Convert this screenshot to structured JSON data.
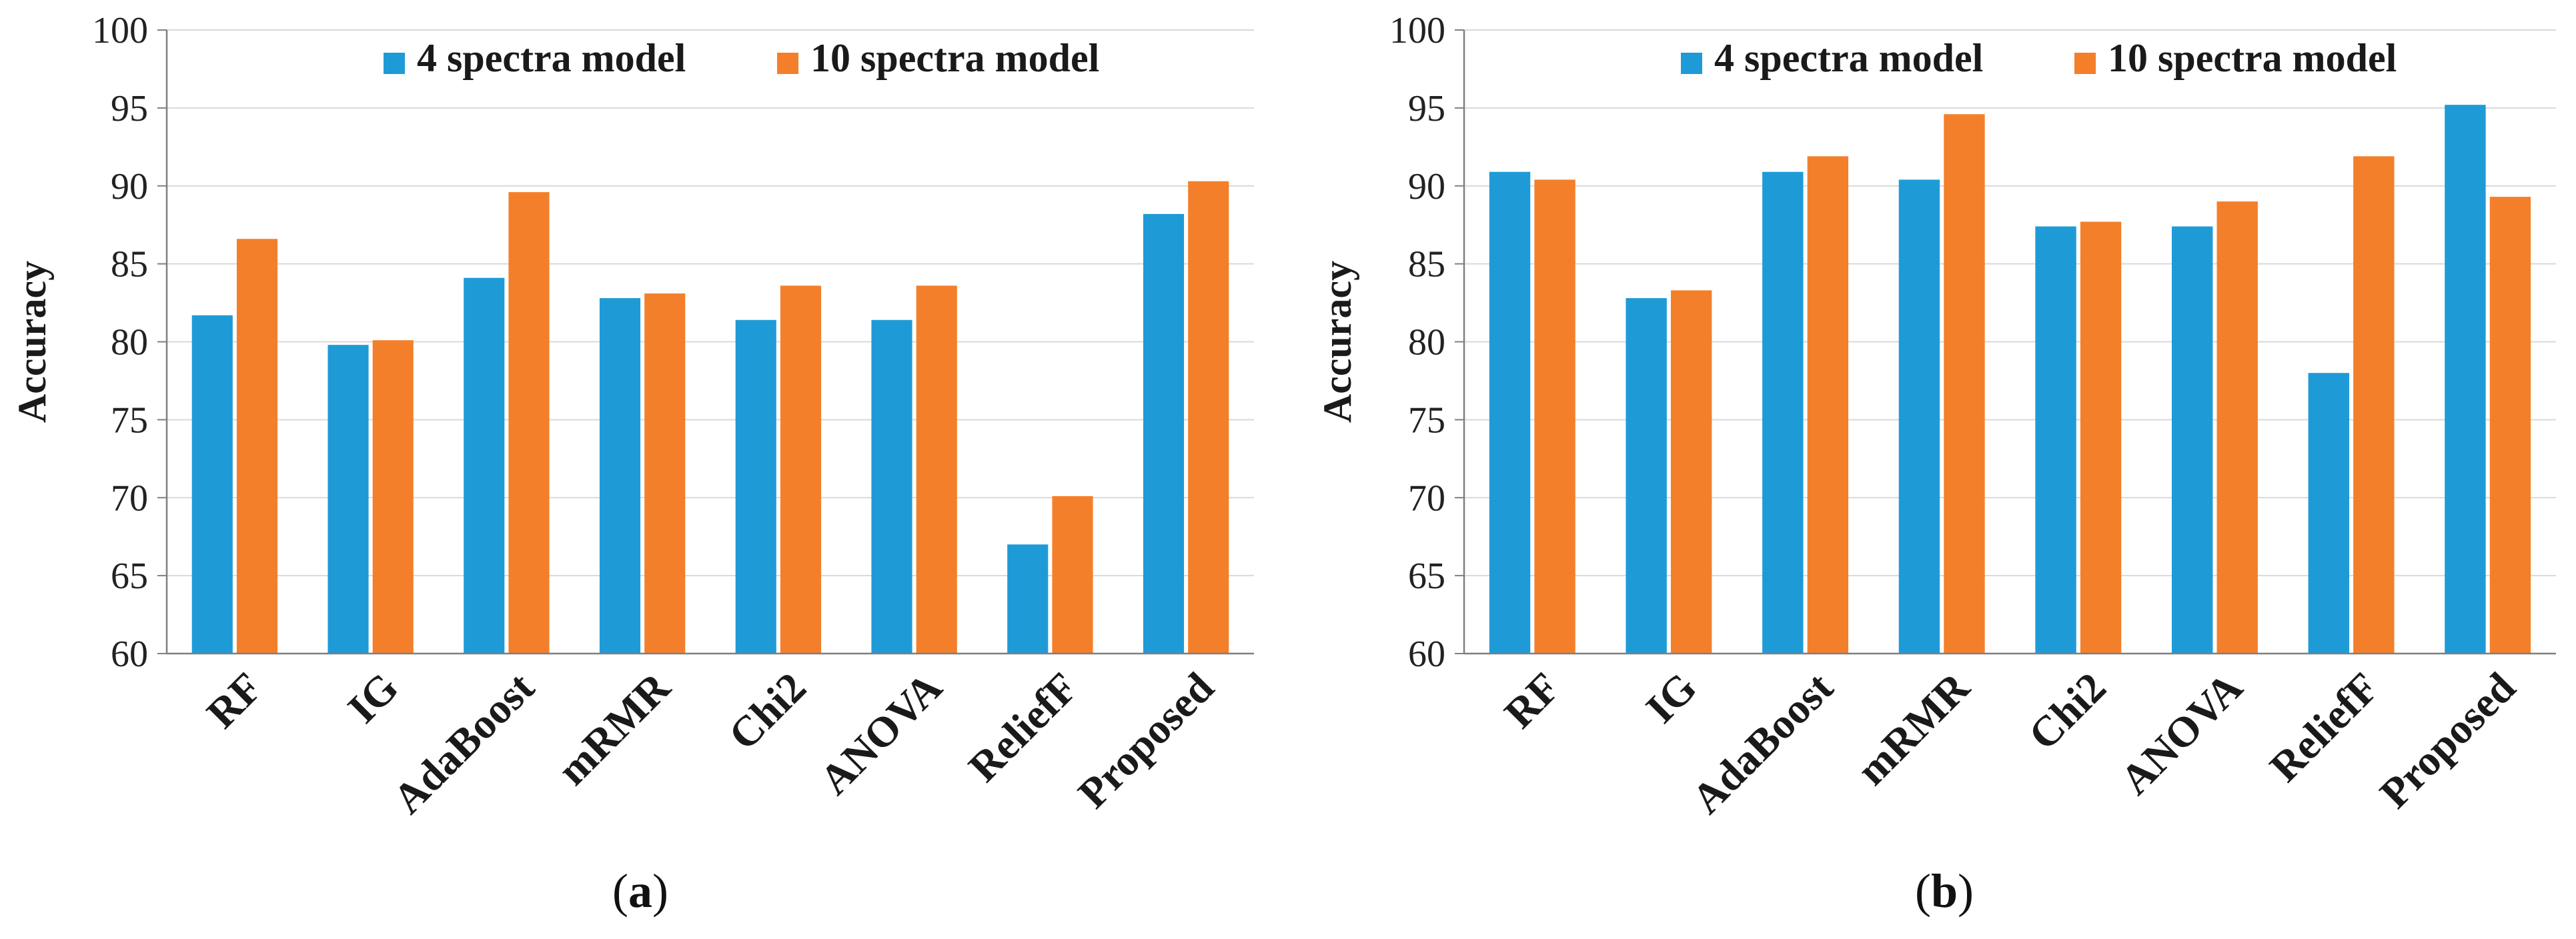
{
  "colors": {
    "series_4": "#1e9bd7",
    "series_10": "#f47f2a",
    "grid": "#d9d9d9",
    "axis": "#7f7f7f"
  },
  "chart_data": [
    {
      "id": "a",
      "type": "bar",
      "caption_prefix": "(",
      "caption_letter": "a",
      "caption_suffix": ")",
      "ylabel": "Accuracy",
      "xlabel": "",
      "ylim": [
        60,
        100
      ],
      "yticks": [
        60,
        65,
        70,
        75,
        80,
        85,
        90,
        95,
        100
      ],
      "legend_position": "top",
      "categories": [
        "RF",
        "IG",
        "AdaBoost",
        "mRMR",
        "Chi2",
        "ANOVA",
        "ReliefF",
        "Proposed"
      ],
      "series": [
        {
          "name": "4 spectra model",
          "values": [
            81.7,
            79.8,
            84.1,
            82.8,
            81.4,
            81.4,
            67.0,
            88.2
          ]
        },
        {
          "name": "10 spectra model",
          "values": [
            86.6,
            80.1,
            89.6,
            83.1,
            83.6,
            83.6,
            70.1,
            90.3
          ]
        }
      ]
    },
    {
      "id": "b",
      "type": "bar",
      "caption_prefix": "(",
      "caption_letter": "b",
      "caption_suffix": ")",
      "ylabel": "Accuracy",
      "xlabel": "",
      "ylim": [
        60,
        100
      ],
      "yticks": [
        60,
        65,
        70,
        75,
        80,
        85,
        90,
        95,
        100
      ],
      "legend_position": "top",
      "categories": [
        "RF",
        "IG",
        "AdaBoost",
        "mRMR",
        "Chi2",
        "ANOVA",
        "ReliefF",
        "Proposed"
      ],
      "series": [
        {
          "name": "4 spectra model",
          "values": [
            90.9,
            82.8,
            90.9,
            90.4,
            87.4,
            87.4,
            78.0,
            95.2
          ]
        },
        {
          "name": "10 spectra model",
          "values": [
            90.4,
            83.3,
            91.9,
            94.6,
            87.7,
            89.0,
            91.9,
            89.3
          ]
        }
      ]
    }
  ]
}
